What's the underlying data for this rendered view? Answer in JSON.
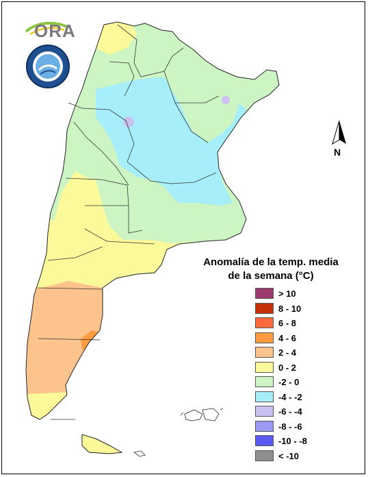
{
  "logo": {
    "text": "ORA"
  },
  "north_arrow": {
    "label": "N"
  },
  "legend": {
    "title_line1": "Anomalía de la temp. media",
    "title_line2": "de la semana (°C)",
    "items": [
      {
        "label": "> 10",
        "color": "#9b3a6e"
      },
      {
        "label": "8 - 10",
        "color": "#c4320a"
      },
      {
        "label": "6 - 8",
        "color": "#ff6a3d"
      },
      {
        "label": "4 - 6",
        "color": "#ff9c3f"
      },
      {
        "label": "2 - 4",
        "color": "#fcc38d"
      },
      {
        "label": "0 - 2",
        "color": "#fbf99a"
      },
      {
        "label": "-2 - 0",
        "color": "#cdf5c4"
      },
      {
        "label": "-4 - -2",
        "color": "#a6effa"
      },
      {
        "label": "-6 - -4",
        "color": "#cbc1f3"
      },
      {
        "label": "-8 - -6",
        "color": "#9a9af5"
      },
      {
        "label": "-10 - -8",
        "color": "#5a5af2"
      },
      {
        "label": "< -10",
        "color": "#8e8e8e"
      }
    ]
  }
}
